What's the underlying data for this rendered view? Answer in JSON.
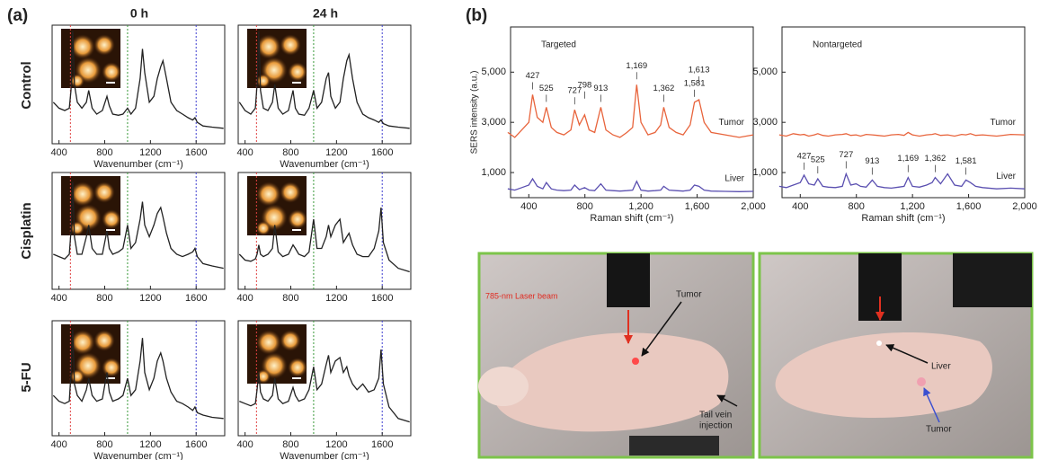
{
  "figure": {
    "panel_labels": [
      "(a)",
      "(b)"
    ],
    "column_headers": [
      "0 h",
      "24 h"
    ],
    "row_labels": [
      "Control",
      "Cisplatin",
      "5-FU"
    ],
    "photo_labels": [
      [
        "785-nm Laser beam",
        "Tumor",
        "Tail vein",
        "injection"
      ],
      [
        "Liver",
        "Tumor"
      ]
    ]
  },
  "chart_data": [
    {
      "type": "line",
      "xlabel": "Wavenumber (cm⁻¹)",
      "xlim": [
        340,
        1850
      ],
      "ylim": [
        0,
        100
      ],
      "xticks": [
        400,
        800,
        1200,
        1600
      ],
      "vlines": [
        {
          "value": 500,
          "color": "#e04040"
        },
        {
          "value": 1000,
          "color": "#3a9a3a"
        },
        {
          "value": 1600,
          "color": "#4040d0"
        }
      ],
      "x": [
        350,
        400,
        450,
        490,
        505,
        520,
        535,
        560,
        600,
        640,
        660,
        690,
        730,
        780,
        820,
        840,
        870,
        920,
        960,
        1000,
        1030,
        1070,
        1110,
        1130,
        1150,
        1190,
        1230,
        1260,
        1290,
        1310,
        1340,
        1380,
        1430,
        1480,
        1530,
        1570,
        1590,
        1610,
        1660,
        1740,
        1840
      ],
      "series": [
        {
          "color": "#222222",
          "values": [
            35,
            30,
            28,
            30,
            45,
            95,
            50,
            35,
            30,
            35,
            45,
            30,
            25,
            28,
            40,
            32,
            25,
            24,
            25,
            30,
            25,
            30,
            55,
            80,
            60,
            35,
            40,
            55,
            65,
            70,
            55,
            35,
            28,
            25,
            22,
            20,
            22,
            18,
            15,
            14,
            13
          ]
        }
      ]
    },
    {
      "type": "line",
      "xlabel": "Wavenumber (cm⁻¹)",
      "xlim": [
        340,
        1850
      ],
      "ylim": [
        0,
        100
      ],
      "xticks": [
        400,
        800,
        1200,
        1600
      ],
      "vlines": [
        {
          "value": 500,
          "color": "#e04040"
        },
        {
          "value": 1000,
          "color": "#3a9a3a"
        },
        {
          "value": 1600,
          "color": "#4040d0"
        }
      ],
      "x": [
        350,
        400,
        450,
        490,
        505,
        520,
        535,
        560,
        600,
        640,
        660,
        690,
        730,
        780,
        820,
        840,
        870,
        920,
        960,
        1000,
        1030,
        1070,
        1110,
        1130,
        1150,
        1190,
        1230,
        1260,
        1290,
        1310,
        1340,
        1380,
        1430,
        1480,
        1530,
        1570,
        1590,
        1610,
        1660,
        1740,
        1840
      ],
      "series": [
        {
          "color": "#222222",
          "values": [
            35,
            28,
            25,
            30,
            50,
            95,
            45,
            30,
            28,
            35,
            50,
            30,
            25,
            28,
            45,
            30,
            25,
            24,
            30,
            45,
            30,
            35,
            55,
            60,
            40,
            30,
            35,
            55,
            70,
            75,
            55,
            35,
            25,
            22,
            20,
            18,
            20,
            17,
            15,
            14,
            13
          ]
        }
      ]
    },
    {
      "type": "line",
      "xlim": [
        340,
        1850
      ],
      "ylim": [
        0,
        100
      ],
      "xticks": [
        400,
        800,
        1200,
        1600
      ],
      "vlines": [
        {
          "value": 500,
          "color": "#e04040"
        },
        {
          "value": 1000,
          "color": "#3a9a3a"
        },
        {
          "value": 1600,
          "color": "#4040d0"
        }
      ],
      "x": [
        350,
        400,
        450,
        490,
        505,
        520,
        535,
        560,
        600,
        640,
        660,
        690,
        730,
        780,
        820,
        840,
        870,
        920,
        960,
        1000,
        1030,
        1070,
        1110,
        1130,
        1150,
        1190,
        1230,
        1260,
        1290,
        1310,
        1340,
        1380,
        1430,
        1480,
        1530,
        1570,
        1590,
        1610,
        1660,
        1740,
        1840
      ],
      "series": [
        {
          "color": "#222222",
          "values": [
            30,
            28,
            26,
            30,
            50,
            92,
            45,
            30,
            30,
            45,
            55,
            35,
            30,
            30,
            50,
            35,
            30,
            32,
            35,
            55,
            35,
            40,
            60,
            75,
            55,
            45,
            55,
            65,
            70,
            62,
            48,
            35,
            30,
            28,
            30,
            32,
            35,
            28,
            22,
            20,
            18
          ]
        }
      ]
    },
    {
      "type": "line",
      "xlim": [
        340,
        1850
      ],
      "ylim": [
        0,
        100
      ],
      "xticks": [
        400,
        800,
        1200,
        1600
      ],
      "vlines": [
        {
          "value": 500,
          "color": "#e04040"
        },
        {
          "value": 1000,
          "color": "#3a9a3a"
        },
        {
          "value": 1600,
          "color": "#4040d0"
        }
      ],
      "x": [
        350,
        400,
        450,
        490,
        505,
        520,
        535,
        560,
        600,
        640,
        660,
        690,
        730,
        780,
        820,
        840,
        870,
        920,
        960,
        1000,
        1030,
        1070,
        1110,
        1130,
        1150,
        1190,
        1230,
        1260,
        1290,
        1310,
        1340,
        1380,
        1430,
        1480,
        1530,
        1570,
        1590,
        1610,
        1660,
        1740,
        1840
      ],
      "series": [
        {
          "color": "#222222",
          "values": [
            30,
            25,
            24,
            26,
            30,
            38,
            30,
            28,
            30,
            35,
            55,
            32,
            28,
            30,
            38,
            35,
            30,
            28,
            32,
            60,
            35,
            35,
            45,
            55,
            45,
            55,
            60,
            40,
            45,
            48,
            38,
            30,
            28,
            28,
            35,
            50,
            70,
            40,
            25,
            18,
            15
          ]
        }
      ]
    },
    {
      "type": "line",
      "xlabel": "Wavenumber (cm⁻¹)",
      "xlim": [
        340,
        1850
      ],
      "ylim": [
        0,
        100
      ],
      "xticks": [
        400,
        800,
        1200,
        1600
      ],
      "vlines": [
        {
          "value": 500,
          "color": "#e04040"
        },
        {
          "value": 1000,
          "color": "#3a9a3a"
        },
        {
          "value": 1600,
          "color": "#4040d0"
        }
      ],
      "x": [
        350,
        400,
        450,
        490,
        505,
        520,
        535,
        560,
        600,
        640,
        660,
        690,
        730,
        780,
        820,
        840,
        870,
        920,
        960,
        1000,
        1030,
        1070,
        1110,
        1130,
        1150,
        1190,
        1230,
        1260,
        1290,
        1310,
        1340,
        1380,
        1430,
        1480,
        1530,
        1570,
        1590,
        1610,
        1660,
        1740,
        1840
      ],
      "series": [
        {
          "color": "#222222",
          "values": [
            35,
            30,
            28,
            30,
            55,
            92,
            45,
            35,
            30,
            40,
            50,
            35,
            30,
            32,
            55,
            38,
            30,
            32,
            35,
            50,
            35,
            40,
            65,
            85,
            55,
            40,
            50,
            65,
            72,
            65,
            50,
            38,
            30,
            28,
            25,
            22,
            25,
            20,
            18,
            16,
            15
          ]
        }
      ]
    },
    {
      "type": "line",
      "xlabel": "Wavenumber (cm⁻¹)",
      "xlim": [
        340,
        1850
      ],
      "ylim": [
        0,
        100
      ],
      "xticks": [
        400,
        800,
        1200,
        1600
      ],
      "vlines": [
        {
          "value": 500,
          "color": "#e04040"
        },
        {
          "value": 1000,
          "color": "#3a9a3a"
        },
        {
          "value": 1600,
          "color": "#4040d0"
        }
      ],
      "x": [
        350,
        400,
        450,
        490,
        505,
        520,
        535,
        560,
        600,
        640,
        660,
        690,
        730,
        780,
        820,
        840,
        870,
        920,
        960,
        1000,
        1030,
        1070,
        1110,
        1130,
        1150,
        1190,
        1230,
        1260,
        1290,
        1310,
        1340,
        1380,
        1430,
        1480,
        1530,
        1570,
        1590,
        1610,
        1660,
        1740,
        1840
      ],
      "series": [
        {
          "color": "#222222",
          "values": [
            30,
            28,
            26,
            28,
            40,
            55,
            38,
            32,
            30,
            35,
            50,
            32,
            28,
            30,
            42,
            35,
            30,
            32,
            40,
            60,
            40,
            45,
            62,
            70,
            55,
            65,
            68,
            55,
            60,
            52,
            45,
            40,
            45,
            38,
            40,
            50,
            75,
            45,
            25,
            15,
            12
          ]
        }
      ]
    },
    {
      "type": "line",
      "subtitle": "Targeted",
      "xlabel": "Raman shift (cm⁻¹)",
      "ylabel": "SERS intensity (a.u.)",
      "xlim": [
        270,
        2000
      ],
      "ylim": [
        0,
        6800
      ],
      "xticks": [
        400,
        800,
        {
          "value": 1200,
          "label": "1,200"
        },
        {
          "value": 1600,
          "label": "1,600"
        },
        {
          "value": 2000,
          "label": "2,000"
        }
      ],
      "yticks": [
        {
          "value": 1000,
          "label": "1,000"
        },
        {
          "value": 3000,
          "label": "3,000"
        },
        {
          "value": 5000,
          "label": "5,000"
        }
      ],
      "x": [
        250,
        300,
        350,
        400,
        427,
        460,
        500,
        525,
        560,
        600,
        650,
        700,
        727,
        760,
        798,
        830,
        870,
        913,
        950,
        1000,
        1050,
        1100,
        1140,
        1169,
        1200,
        1250,
        1300,
        1340,
        1362,
        1400,
        1450,
        1500,
        1550,
        1581,
        1613,
        1650,
        1700,
        1800,
        1900,
        2000
      ],
      "series": [
        {
          "name": "Tumor",
          "color": "#e8643c",
          "values": [
            2600,
            2400,
            2700,
            3000,
            4100,
            3200,
            3000,
            3600,
            2800,
            2600,
            2500,
            2700,
            3500,
            2900,
            3300,
            2700,
            2600,
            3600,
            2700,
            2500,
            2400,
            2600,
            2800,
            4500,
            3000,
            2500,
            2600,
            2900,
            3600,
            2800,
            2600,
            2500,
            2900,
            3800,
            3900,
            3000,
            2600,
            2500,
            2400,
            2500
          ],
          "peak_labels": [
            427,
            525,
            727,
            798,
            913,
            {
              "value": 1169,
              "label": "1,169"
            },
            {
              "value": 1362,
              "label": "1,362"
            },
            {
              "value": 1581,
              "label": "1,581"
            },
            {
              "value": 1613,
              "label": "1,613"
            }
          ]
        },
        {
          "name": "Liver",
          "color": "#5a4fb0",
          "values": [
            350,
            300,
            400,
            500,
            750,
            450,
            350,
            600,
            350,
            300,
            280,
            300,
            500,
            320,
            400,
            300,
            280,
            550,
            300,
            280,
            260,
            280,
            300,
            650,
            300,
            260,
            280,
            300,
            450,
            300,
            280,
            260,
            300,
            500,
            450,
            300,
            260,
            250,
            240,
            250
          ]
        }
      ]
    },
    {
      "type": "line",
      "subtitle": "Nontargeted",
      "xlabel": "Raman shift (cm⁻¹)",
      "xlim": [
        270,
        2000
      ],
      "ylim": [
        0,
        6800
      ],
      "xticks": [
        400,
        800,
        {
          "value": 1200,
          "label": "1,200"
        },
        {
          "value": 1600,
          "label": "1,600"
        },
        {
          "value": 2000,
          "label": "2,000"
        }
      ],
      "yticks": [
        {
          "value": 1000,
          "label": "1,000"
        },
        {
          "value": 3000,
          "label": "3,000"
        },
        {
          "value": 5000,
          "label": "5,000"
        }
      ],
      "x": [
        250,
        300,
        350,
        400,
        427,
        460,
        500,
        525,
        560,
        600,
        650,
        700,
        727,
        760,
        798,
        830,
        870,
        913,
        950,
        1000,
        1050,
        1100,
        1140,
        1169,
        1200,
        1250,
        1300,
        1340,
        1362,
        1400,
        1450,
        1500,
        1550,
        1581,
        1613,
        1650,
        1700,
        1800,
        1900,
        2000
      ],
      "series": [
        {
          "name": "Tumor",
          "color": "#e8643c",
          "values": [
            2500,
            2450,
            2550,
            2500,
            2520,
            2450,
            2500,
            2550,
            2480,
            2450,
            2500,
            2520,
            2550,
            2480,
            2500,
            2450,
            2520,
            2500,
            2480,
            2450,
            2500,
            2520,
            2480,
            2600,
            2500,
            2450,
            2500,
            2520,
            2550,
            2480,
            2500,
            2450,
            2520,
            2500,
            2550,
            2480,
            2500,
            2450,
            2520,
            2500
          ]
        },
        {
          "name": "Liver",
          "color": "#5a4fb0",
          "values": [
            450,
            400,
            500,
            600,
            900,
            550,
            500,
            750,
            450,
            420,
            400,
            450,
            950,
            500,
            550,
            450,
            420,
            700,
            450,
            400,
            380,
            420,
            450,
            800,
            450,
            420,
            500,
            600,
            800,
            550,
            950,
            500,
            450,
            700,
            600,
            450,
            400,
            350,
            380,
            350
          ],
          "peak_labels": [
            427,
            525,
            727,
            913,
            {
              "value": 1169,
              "label": "1,169"
            },
            {
              "value": 1362,
              "label": "1,362"
            },
            {
              "value": 1581,
              "label": "1,581"
            }
          ]
        }
      ]
    }
  ]
}
